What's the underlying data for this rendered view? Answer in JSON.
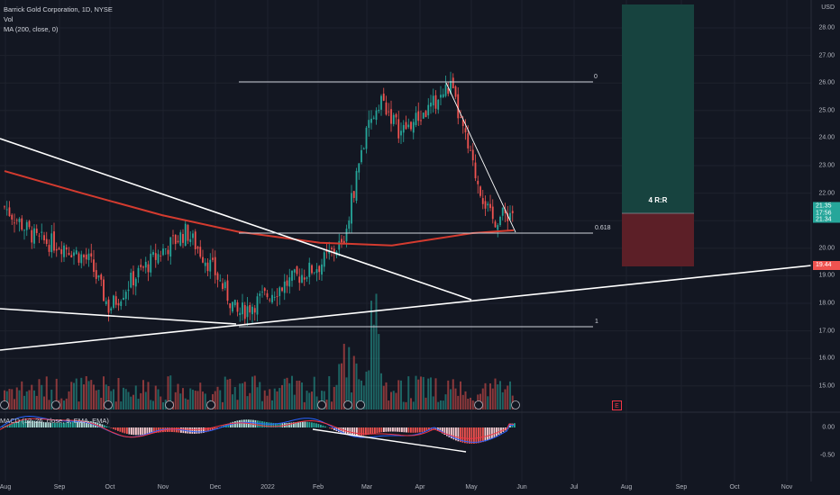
{
  "legend": {
    "symbol": "Barrick Gold Corporation, 1D, NYSE",
    "volume": "Vol",
    "ma": "MA (200, close, 0)",
    "macd": "MACD (12, 26, close, 9, EMA, EMA)"
  },
  "currency": "USD",
  "price_axis": {
    "ticks": [
      "28.00",
      "27.00",
      "26.00",
      "25.00",
      "24.00",
      "23.00",
      "22.00",
      "21.00",
      "20.00",
      "19.00",
      "18.00",
      "17.00",
      "16.00",
      "15.00"
    ],
    "tick_values": [
      28,
      27,
      26,
      25,
      24,
      23,
      22,
      21,
      20,
      19,
      18,
      17,
      16,
      15
    ],
    "current_price": "21.35",
    "countdown": "17:56",
    "ma_value": "21.34",
    "trendline_value": "19.44"
  },
  "macd_axis": {
    "ticks": [
      "0.00",
      "-0.50"
    ],
    "tick_values": [
      0,
      -0.5
    ]
  },
  "time_axis": [
    "Aug",
    "Sep",
    "Oct",
    "Nov",
    "Dec",
    "2022",
    "Feb",
    "Mar",
    "Apr",
    "May",
    "Jun",
    "Jul",
    "Aug",
    "Sep",
    "Oct",
    "Nov"
  ],
  "fib_levels": {
    "level_0": "0",
    "level_618": "0.618",
    "level_1": "1"
  },
  "risk_reward": "4 R:R",
  "earnings_marker": "E",
  "colors": {
    "background": "#131722",
    "up": "#26a69a",
    "down": "#ef5350",
    "ma": "#d43b2f",
    "macd_line": "#2962ff",
    "signal_line": "#f23645",
    "profit_zone": "#17433f",
    "loss_zone": "#5c1f27"
  },
  "chart_data": {
    "type": "candlestick",
    "title": "Barrick Gold Corporation, 1D, NYSE",
    "y_range": [
      14.5,
      28.7
    ],
    "x_range": [
      "2021-08",
      "2022-11"
    ],
    "key_prices": {
      "swing_high": 26.1,
      "swing_low": 17.25,
      "fib_0618_level": 20.62,
      "current": 21.35,
      "ma200": 21.34,
      "target": 28.9,
      "stop": 19.8
    },
    "ma200_points": [
      {
        "x": "2021-08-01",
        "y": 22.8
      },
      {
        "x": "2021-09-15",
        "y": 22.0
      },
      {
        "x": "2021-11-01",
        "y": 21.2
      },
      {
        "x": "2021-12-15",
        "y": 20.6
      },
      {
        "x": "2022-02-01",
        "y": 20.2
      },
      {
        "x": "2022-03-15",
        "y": 20.1
      },
      {
        "x": "2022-05-01",
        "y": 20.55
      },
      {
        "x": "2022-05-25",
        "y": 20.65
      }
    ],
    "close_path": [
      {
        "x": "2021-08-01",
        "y": 21.5
      },
      {
        "x": "2021-08-20",
        "y": 20.3
      },
      {
        "x": "2021-09-05",
        "y": 20.1
      },
      {
        "x": "2021-09-20",
        "y": 19.5
      },
      {
        "x": "2021-10-01",
        "y": 17.8
      },
      {
        "x": "2021-10-15",
        "y": 18.9
      },
      {
        "x": "2021-11-01",
        "y": 19.9
      },
      {
        "x": "2021-11-15",
        "y": 20.6
      },
      {
        "x": "2021-12-01",
        "y": 19.2
      },
      {
        "x": "2021-12-15",
        "y": 17.6
      },
      {
        "x": "2022-01-01",
        "y": 18.3
      },
      {
        "x": "2022-01-20",
        "y": 19.0
      },
      {
        "x": "2022-02-01",
        "y": 19.4
      },
      {
        "x": "2022-02-15",
        "y": 20.3
      },
      {
        "x": "2022-02-25",
        "y": 23.5
      },
      {
        "x": "2022-03-08",
        "y": 25.5
      },
      {
        "x": "2022-03-20",
        "y": 24.2
      },
      {
        "x": "2022-04-05",
        "y": 25.0
      },
      {
        "x": "2022-04-18",
        "y": 25.9
      },
      {
        "x": "2022-05-01",
        "y": 23.0
      },
      {
        "x": "2022-05-12",
        "y": 21.0
      },
      {
        "x": "2022-05-25",
        "y": 21.35
      }
    ]
  }
}
